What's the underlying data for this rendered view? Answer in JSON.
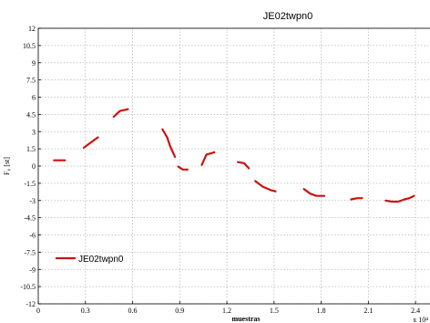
{
  "chart_data": {
    "type": "line",
    "title": "JE02twpn0",
    "xlabel": "muestras",
    "ylabel": "F₀ [st]",
    "x_exponent_label": "x 10⁴",
    "xlim": [
      0,
      2.55
    ],
    "ylim": [
      -12,
      12
    ],
    "xticks": [
      "0",
      "0.3",
      "0.6",
      "0.9",
      "1.2",
      "1.5",
      "1.8",
      "2.1",
      "2.4"
    ],
    "yticks": [
      "12",
      "10.5",
      "9",
      "7.5",
      "6",
      "4.5",
      "3",
      "1.5",
      "0",
      "-1.5",
      "-3",
      "-4.5",
      "-6",
      "-7.5",
      "-9",
      "-10.5",
      "-12"
    ],
    "grid": true,
    "legend_position": "lower-left",
    "series": [
      {
        "name": "JE02twpn0",
        "color": "#d01010",
        "segments": [
          [
            [
              0.1,
              0.5
            ],
            [
              0.17,
              0.5
            ]
          ],
          [
            [
              0.29,
              1.6
            ],
            [
              0.33,
              2.0
            ],
            [
              0.38,
              2.5
            ]
          ],
          [
            [
              0.48,
              4.3
            ],
            [
              0.52,
              4.8
            ],
            [
              0.57,
              4.95
            ]
          ],
          [
            [
              0.79,
              3.2
            ],
            [
              0.82,
              2.5
            ],
            [
              0.84,
              1.7
            ],
            [
              0.87,
              0.8
            ]
          ],
          [
            [
              0.89,
              -0.05
            ],
            [
              0.92,
              -0.3
            ],
            [
              0.95,
              -0.3
            ]
          ],
          [
            [
              1.04,
              0.1
            ],
            [
              1.07,
              1.0
            ],
            [
              1.12,
              1.2
            ]
          ],
          [
            [
              1.27,
              0.35
            ],
            [
              1.31,
              0.25
            ],
            [
              1.34,
              -0.2
            ]
          ],
          [
            [
              1.38,
              -1.3
            ],
            [
              1.43,
              -1.8
            ],
            [
              1.48,
              -2.1
            ],
            [
              1.51,
              -2.2
            ]
          ],
          [
            [
              1.69,
              -2.0
            ],
            [
              1.73,
              -2.4
            ],
            [
              1.77,
              -2.6
            ],
            [
              1.82,
              -2.6
            ]
          ],
          [
            [
              1.99,
              -2.9
            ],
            [
              2.03,
              -2.8
            ],
            [
              2.06,
              -2.8
            ]
          ],
          [
            [
              2.21,
              -3.0
            ],
            [
              2.25,
              -3.1
            ],
            [
              2.29,
              -3.1
            ],
            [
              2.33,
              -2.9
            ],
            [
              2.36,
              -2.8
            ],
            [
              2.39,
              -2.6
            ]
          ]
        ]
      }
    ]
  }
}
